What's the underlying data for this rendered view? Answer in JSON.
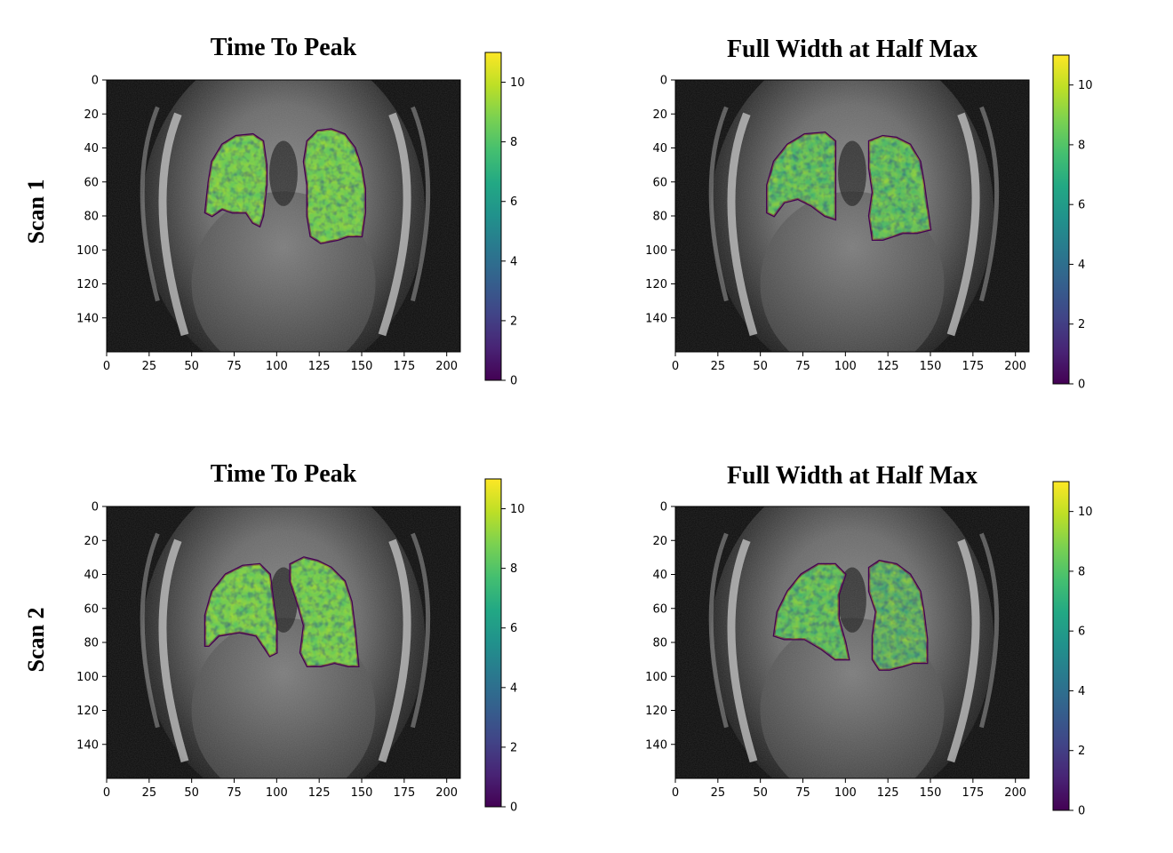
{
  "row_labels": [
    "Scan 1",
    "Scan 2"
  ],
  "chart_data": [
    {
      "type": "heatmap",
      "row": "Scan 1",
      "title": "Time To Peak",
      "xlabel": "",
      "ylabel": "",
      "xlim": [
        0,
        208
      ],
      "ylim": [
        160,
        0
      ],
      "xticks": [
        0,
        25,
        50,
        75,
        100,
        125,
        150,
        175,
        200
      ],
      "yticks": [
        0,
        20,
        40,
        60,
        80,
        100,
        120,
        140
      ],
      "colorbar": {
        "colormap": "viridis",
        "min": 0,
        "max": 11,
        "ticks": [
          0,
          2,
          4,
          6,
          8,
          10
        ]
      },
      "background": "grayscale MRI coronal slice",
      "regions": [
        {
          "name": "left-lung",
          "mean_value": 7.5,
          "polygon": [
            [
              58,
              78
            ],
            [
              60,
              60
            ],
            [
              62,
              48
            ],
            [
              68,
              38
            ],
            [
              76,
              33
            ],
            [
              86,
              32
            ],
            [
              92,
              36
            ],
            [
              94,
              50
            ],
            [
              94,
              62
            ],
            [
              92,
              80
            ],
            [
              90,
              86
            ],
            [
              86,
              84
            ],
            [
              82,
              78
            ],
            [
              74,
              78
            ],
            [
              68,
              76
            ],
            [
              62,
              80
            ]
          ]
        },
        {
          "name": "right-lung",
          "mean_value": 8,
          "polygon": [
            [
              118,
              36
            ],
            [
              124,
              30
            ],
            [
              132,
              29
            ],
            [
              140,
              32
            ],
            [
              146,
              40
            ],
            [
              150,
              52
            ],
            [
              152,
              64
            ],
            [
              152,
              78
            ],
            [
              150,
              92
            ],
            [
              142,
              92
            ],
            [
              136,
              94
            ],
            [
              126,
              96
            ],
            [
              120,
              92
            ],
            [
              118,
              80
            ],
            [
              118,
              62
            ],
            [
              116,
              48
            ]
          ]
        }
      ]
    },
    {
      "type": "heatmap",
      "row": "Scan 1",
      "title": "Full Width at Half Max",
      "xlabel": "",
      "ylabel": "",
      "xlim": [
        0,
        208
      ],
      "ylim": [
        160,
        0
      ],
      "xticks": [
        0,
        25,
        50,
        75,
        100,
        125,
        150,
        175,
        200
      ],
      "yticks": [
        0,
        20,
        40,
        60,
        80,
        100,
        120,
        140
      ],
      "colorbar": {
        "colormap": "viridis",
        "min": 0,
        "max": 11,
        "ticks": [
          0,
          2,
          4,
          6,
          8,
          10
        ]
      },
      "background": "grayscale MRI coronal slice",
      "regions": [
        {
          "name": "left-lung",
          "mean_value": 6.5,
          "polygon": [
            [
              54,
              78
            ],
            [
              54,
              62
            ],
            [
              58,
              48
            ],
            [
              66,
              38
            ],
            [
              76,
              32
            ],
            [
              88,
              31
            ],
            [
              94,
              36
            ],
            [
              94,
              52
            ],
            [
              94,
              66
            ],
            [
              94,
              82
            ],
            [
              88,
              80
            ],
            [
              80,
              74
            ],
            [
              72,
              70
            ],
            [
              64,
              72
            ],
            [
              58,
              80
            ]
          ]
        },
        {
          "name": "right-lung",
          "mean_value": 6.5,
          "polygon": [
            [
              114,
              36
            ],
            [
              122,
              33
            ],
            [
              130,
              34
            ],
            [
              138,
              38
            ],
            [
              144,
              48
            ],
            [
              146,
              60
            ],
            [
              148,
              74
            ],
            [
              150,
              88
            ],
            [
              142,
              90
            ],
            [
              134,
              90
            ],
            [
              128,
              92
            ],
            [
              122,
              94
            ],
            [
              116,
              94
            ],
            [
              114,
              80
            ],
            [
              116,
              66
            ],
            [
              114,
              52
            ]
          ]
        }
      ]
    },
    {
      "type": "heatmap",
      "row": "Scan 2",
      "title": "Time To Peak",
      "xlabel": "",
      "ylabel": "",
      "xlim": [
        0,
        208
      ],
      "ylim": [
        160,
        0
      ],
      "xticks": [
        0,
        25,
        50,
        75,
        100,
        125,
        150,
        175,
        200
      ],
      "yticks": [
        0,
        20,
        40,
        60,
        80,
        100,
        120,
        140
      ],
      "colorbar": {
        "colormap": "viridis",
        "min": 0,
        "max": 11,
        "ticks": [
          0,
          2,
          4,
          6,
          8,
          10
        ]
      },
      "background": "grayscale MRI coronal slice",
      "regions": [
        {
          "name": "left-lung",
          "mean_value": 7.5,
          "polygon": [
            [
              58,
              82
            ],
            [
              58,
              64
            ],
            [
              62,
              50
            ],
            [
              70,
              40
            ],
            [
              80,
              35
            ],
            [
              90,
              34
            ],
            [
              96,
              40
            ],
            [
              98,
              56
            ],
            [
              100,
              70
            ],
            [
              100,
              86
            ],
            [
              96,
              88
            ],
            [
              92,
              82
            ],
            [
              88,
              76
            ],
            [
              78,
              74
            ],
            [
              66,
              76
            ],
            [
              60,
              82
            ]
          ]
        },
        {
          "name": "right-lung",
          "mean_value": 7.5,
          "polygon": [
            [
              108,
              34
            ],
            [
              116,
              30
            ],
            [
              124,
              32
            ],
            [
              132,
              36
            ],
            [
              140,
              44
            ],
            [
              144,
              56
            ],
            [
              146,
              72
            ],
            [
              148,
              94
            ],
            [
              142,
              94
            ],
            [
              134,
              92
            ],
            [
              126,
              94
            ],
            [
              118,
              94
            ],
            [
              114,
              86
            ],
            [
              116,
              70
            ],
            [
              112,
              56
            ],
            [
              108,
              44
            ]
          ]
        }
      ]
    },
    {
      "type": "heatmap",
      "row": "Scan 2",
      "title": "Full Width at Half Max",
      "xlabel": "",
      "ylabel": "",
      "xlim": [
        0,
        208
      ],
      "ylim": [
        160,
        0
      ],
      "xticks": [
        0,
        25,
        50,
        75,
        100,
        125,
        150,
        175,
        200
      ],
      "yticks": [
        0,
        20,
        40,
        60,
        80,
        100,
        120,
        140
      ],
      "colorbar": {
        "colormap": "viridis",
        "min": 0,
        "max": 11,
        "ticks": [
          0,
          2,
          4,
          6,
          8,
          10
        ]
      },
      "background": "grayscale MRI coronal slice",
      "regions": [
        {
          "name": "left-lung",
          "mean_value": 6.5,
          "polygon": [
            [
              58,
              76
            ],
            [
              60,
              62
            ],
            [
              66,
              50
            ],
            [
              74,
              40
            ],
            [
              84,
              34
            ],
            [
              94,
              34
            ],
            [
              100,
              40
            ],
            [
              96,
              52
            ],
            [
              96,
              66
            ],
            [
              100,
              80
            ],
            [
              102,
              90
            ],
            [
              94,
              90
            ],
            [
              86,
              84
            ],
            [
              76,
              78
            ],
            [
              64,
              78
            ]
          ]
        },
        {
          "name": "right-lung",
          "mean_value": 6,
          "polygon": [
            [
              114,
              36
            ],
            [
              120,
              32
            ],
            [
              130,
              34
            ],
            [
              138,
              40
            ],
            [
              144,
              50
            ],
            [
              146,
              62
            ],
            [
              148,
              78
            ],
            [
              148,
              92
            ],
            [
              140,
              92
            ],
            [
              134,
              94
            ],
            [
              126,
              96
            ],
            [
              120,
              96
            ],
            [
              116,
              90
            ],
            [
              116,
              76
            ],
            [
              118,
              62
            ],
            [
              114,
              50
            ]
          ]
        }
      ]
    }
  ]
}
